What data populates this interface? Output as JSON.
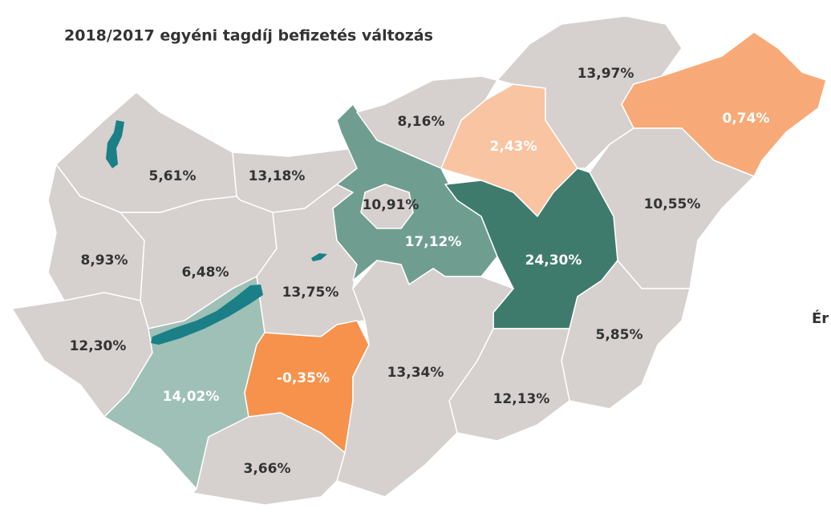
{
  "chart_data": {
    "type": "choropleth",
    "title": "2018/2017 egyéni tagdíj befizetés változás",
    "values": [
      5.61,
      13.18,
      8.93,
      6.48,
      12.3,
      13.75,
      14.02,
      -0.35,
      3.66,
      17.12,
      10.91,
      8.16,
      2.43,
      13.97,
      0.74,
      10.55,
      24.3,
      5.85,
      12.13,
      13.34
    ],
    "value_labels": [
      "5,61%",
      "13,18%",
      "8,93%",
      "6,48%",
      "12,30%",
      "13,75%",
      "14,02%",
      "-0,35%",
      "3,66%",
      "17,12%",
      "10,91%",
      "8,16%",
      "2,43%",
      "13,97%",
      "0,74%",
      "10,55%",
      "24,30%",
      "5,85%",
      "12,13%",
      "13,34%"
    ],
    "colors": [
      "#d6d0cf",
      "#d6d0cf",
      "#d6d0cf",
      "#d6d0cf",
      "#d6d0cf",
      "#d6d0cf",
      "#9fc0b6",
      "#f6924c",
      "#d6d0cf",
      "#6f9e91",
      "#d6d0cf",
      "#d6d0cf",
      "#f9c4a2",
      "#d6d0cf",
      "#f7aa77",
      "#d6d0cf",
      "#3f7b6d",
      "#d6d0cf",
      "#d6d0cf",
      "#d6d0cf"
    ],
    "legend_title": "Ér"
  }
}
